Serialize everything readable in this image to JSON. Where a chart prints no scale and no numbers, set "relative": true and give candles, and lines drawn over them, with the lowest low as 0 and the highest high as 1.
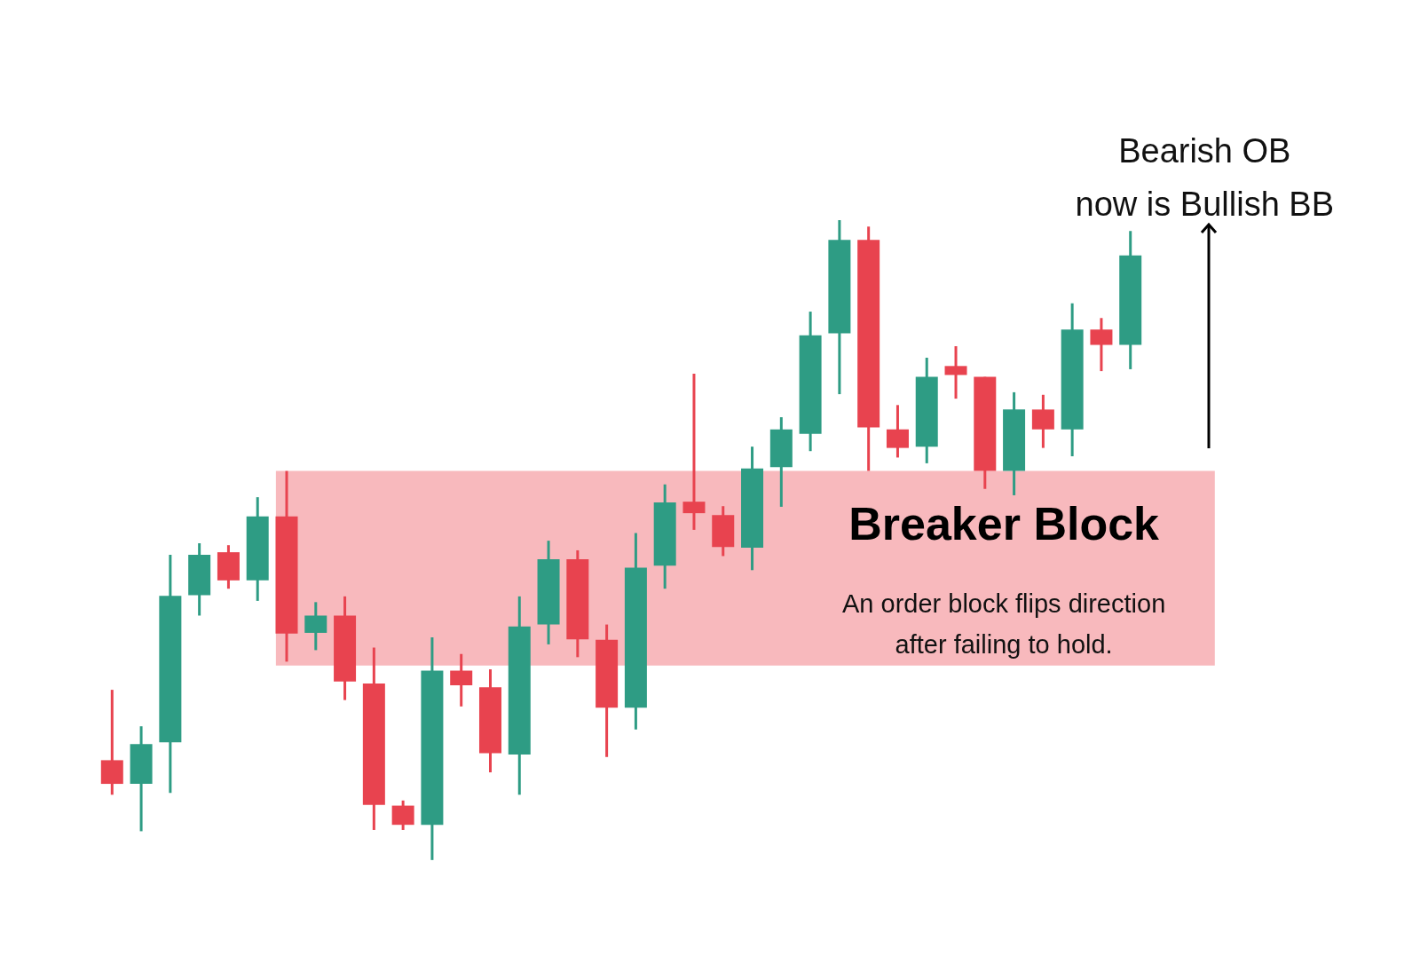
{
  "chart_data": {
    "type": "candlestick",
    "relative": true,
    "categories": [
      null,
      null,
      null,
      null,
      null,
      null,
      null,
      null,
      null,
      null,
      null,
      null,
      null,
      null,
      null,
      null,
      null,
      null,
      null,
      null,
      null,
      null,
      null,
      null,
      null,
      null,
      null,
      null,
      null,
      null,
      null,
      null,
      null,
      null,
      null,
      null
    ],
    "ohlc": [
      [
        0.156,
        0.266,
        0.102,
        0.119
      ],
      [
        0.119,
        0.209,
        0.045,
        0.181
      ],
      [
        0.184,
        0.477,
        0.105,
        0.413
      ],
      [
        0.414,
        0.495,
        0.382,
        0.477
      ],
      [
        0.481,
        0.492,
        0.424,
        0.437
      ],
      [
        0.437,
        0.567,
        0.405,
        0.537
      ],
      [
        0.537,
        0.608,
        0.31,
        0.354
      ],
      [
        0.355,
        0.403,
        0.328,
        0.382
      ],
      [
        0.382,
        0.412,
        0.25,
        0.279
      ],
      [
        0.276,
        0.332,
        0.047,
        0.086
      ],
      [
        0.085,
        0.093,
        0.047,
        0.055
      ],
      [
        0.055,
        0.348,
        0.0,
        0.296
      ],
      [
        0.296,
        0.322,
        0.24,
        0.273
      ],
      [
        0.27,
        0.298,
        0.137,
        0.167
      ],
      [
        0.165,
        0.412,
        0.102,
        0.365
      ],
      [
        0.368,
        0.499,
        0.337,
        0.47
      ],
      [
        0.47,
        0.484,
        0.317,
        0.345
      ],
      [
        0.344,
        0.368,
        0.161,
        0.238
      ],
      [
        0.238,
        0.511,
        0.204,
        0.457
      ],
      [
        0.46,
        0.587,
        0.424,
        0.559
      ],
      [
        0.56,
        0.76,
        0.516,
        0.542
      ],
      [
        0.539,
        0.553,
        0.475,
        0.489
      ],
      [
        0.488,
        0.646,
        0.453,
        0.612
      ],
      [
        0.614,
        0.692,
        0.552,
        0.673
      ],
      [
        0.666,
        0.857,
        0.639,
        0.82
      ],
      [
        0.823,
        1.0,
        0.728,
        0.969
      ],
      [
        0.969,
        0.99,
        0.608,
        0.676
      ],
      [
        0.673,
        0.711,
        0.629,
        0.644
      ],
      [
        0.646,
        0.785,
        0.62,
        0.755
      ],
      [
        0.772,
        0.803,
        0.721,
        0.758
      ],
      [
        0.755,
        0.755,
        0.58,
        0.608
      ],
      [
        0.608,
        0.731,
        0.57,
        0.704
      ],
      [
        0.704,
        0.727,
        0.644,
        0.673
      ],
      [
        0.673,
        0.87,
        0.631,
        0.829
      ],
      [
        0.829,
        0.847,
        0.764,
        0.805
      ],
      [
        0.805,
        0.983,
        0.767,
        0.945
      ]
    ],
    "colors": [
      "#e8434f",
      "#2e9c84",
      "#2e9c84",
      "#2e9c84",
      "#e8434f",
      "#2e9c84",
      "#e8434f",
      "#2e9c84",
      "#e8434f",
      "#e8434f",
      "#e8434f",
      "#2e9c84",
      "#e8434f",
      "#e8434f",
      "#2e9c84",
      "#2e9c84",
      "#e8434f",
      "#e8434f",
      "#2e9c84",
      "#2e9c84",
      "#e8434f",
      "#e8434f",
      "#2e9c84",
      "#2e9c84",
      "#2e9c84",
      "#2e9c84",
      "#e8434f",
      "#e8434f",
      "#2e9c84",
      "#e8434f",
      "#e8434f",
      "#2e9c84",
      "#e8434f",
      "#2e9c84",
      "#e8434f",
      "#2e9c84"
    ],
    "bands": [
      {
        "axis": "y",
        "from": 0.304,
        "to": 0.608,
        "label": "Breaker Block",
        "color": "#f8b9bd"
      }
    ],
    "annotations": [
      "An order block flips direction\nafter failing to hold.",
      "Bearish OB\nnow is Bullish BB"
    ]
  }
}
